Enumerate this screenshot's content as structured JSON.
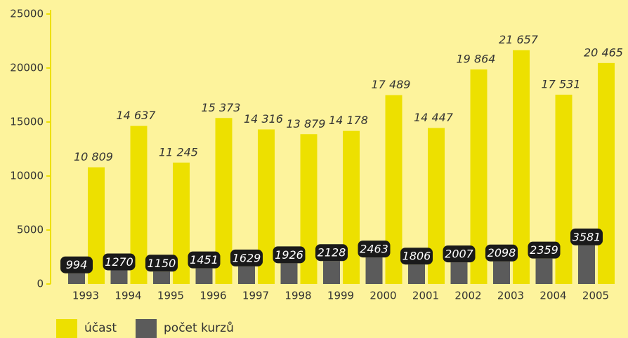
{
  "chart_data": {
    "type": "bar",
    "categories": [
      "1993",
      "1994",
      "1995",
      "1996",
      "1997",
      "1998",
      "1999",
      "2000",
      "2001",
      "2002",
      "2003",
      "2004",
      "2005"
    ],
    "series": [
      {
        "name": "účast",
        "color": "#ede000",
        "values": [
          10809,
          14637,
          11245,
          15373,
          14316,
          13879,
          14178,
          17489,
          14447,
          19864,
          21657,
          17531,
          20465
        ],
        "value_labels": [
          "10 809",
          "14 637",
          "11 245",
          "15 373",
          "14 316",
          "13 879",
          "14 178",
          "17 489",
          "14 447",
          "19 864",
          "21 657",
          "17 531",
          "20 465"
        ]
      },
      {
        "name": "počet kurzů",
        "color": "#5b5b5b",
        "values": [
          994,
          1270,
          1150,
          1451,
          1629,
          1926,
          2128,
          2463,
          1806,
          2007,
          2098,
          2359,
          3581
        ]
      }
    ],
    "ylim": [
      0,
      25000
    ],
    "yticks": [
      0,
      5000,
      10000,
      15000,
      20000,
      25000
    ],
    "legend": "bottom"
  }
}
